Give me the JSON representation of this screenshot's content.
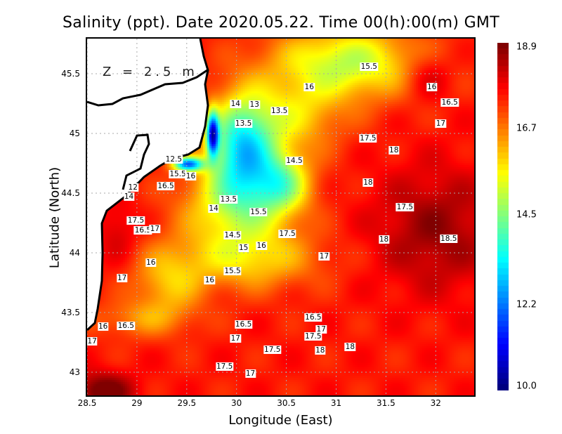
{
  "title": "Salinity (ppt). Date 2020.05.22. Time 00(h):00(m) GMT",
  "depth_label": "Z = 2.5 m",
  "chart_data": {
    "type": "heatmap",
    "title": "Salinity (ppt). Date 2020.05.22. Time 00(h):00(m) GMT",
    "xlabel": "Longitude (East)",
    "ylabel": "Latitude (North)",
    "xlim": [
      28.5,
      32.39
    ],
    "ylim": [
      42.81,
      45.8
    ],
    "xticks": [
      "28.5",
      "29",
      "29.5",
      "30",
      "30.5",
      "31",
      "31.5",
      "32"
    ],
    "yticks": [
      "43",
      "43.5",
      "44",
      "44.5",
      "45",
      "45.5"
    ],
    "colorbar": {
      "min": 10.0,
      "max": 18.9,
      "ticks": [
        "10.0",
        "12.2",
        "14.5",
        "16.7",
        "18.9"
      ],
      "colormap": "jet"
    },
    "grid": true,
    "contour_labels": [
      {
        "v": "15.5",
        "lon": 31.33,
        "lat": 45.56
      },
      {
        "v": "16",
        "lon": 30.73,
        "lat": 45.39
      },
      {
        "v": "16",
        "lon": 31.96,
        "lat": 45.39
      },
      {
        "v": "16.5",
        "lon": 32.14,
        "lat": 45.26
      },
      {
        "v": "17",
        "lon": 32.05,
        "lat": 45.08
      },
      {
        "v": "14",
        "lon": 29.99,
        "lat": 45.25
      },
      {
        "v": "13",
        "lon": 30.18,
        "lat": 45.24
      },
      {
        "v": "13.5",
        "lon": 30.43,
        "lat": 45.19
      },
      {
        "v": "13.5",
        "lon": 30.07,
        "lat": 45.08
      },
      {
        "v": "17.5",
        "lon": 31.32,
        "lat": 44.96
      },
      {
        "v": "18",
        "lon": 31.58,
        "lat": 44.86
      },
      {
        "v": "14.5",
        "lon": 30.58,
        "lat": 44.77
      },
      {
        "v": "12.5",
        "lon": 29.37,
        "lat": 44.78
      },
      {
        "v": "15.5",
        "lon": 29.41,
        "lat": 44.66
      },
      {
        "v": "16",
        "lon": 29.54,
        "lat": 44.64
      },
      {
        "v": "16.5",
        "lon": 29.29,
        "lat": 44.56
      },
      {
        "v": "18",
        "lon": 31.32,
        "lat": 44.59
      },
      {
        "v": "12",
        "lon": 28.96,
        "lat": 44.55
      },
      {
        "v": "13.5",
        "lon": 29.92,
        "lat": 44.45
      },
      {
        "v": "14",
        "lon": 28.92,
        "lat": 44.47
      },
      {
        "v": "17.5",
        "lon": 31.69,
        "lat": 44.38
      },
      {
        "v": "14",
        "lon": 29.77,
        "lat": 44.37
      },
      {
        "v": "15.5",
        "lon": 30.22,
        "lat": 44.34
      },
      {
        "v": "17.5",
        "lon": 28.99,
        "lat": 44.27
      },
      {
        "v": "16.5",
        "lon": 29.06,
        "lat": 44.19
      },
      {
        "v": "17",
        "lon": 29.18,
        "lat": 44.2
      },
      {
        "v": "17.5",
        "lon": 30.51,
        "lat": 44.16
      },
      {
        "v": "14.5",
        "lon": 29.96,
        "lat": 44.15
      },
      {
        "v": "18",
        "lon": 31.48,
        "lat": 44.11
      },
      {
        "v": "18.5",
        "lon": 32.13,
        "lat": 44.12
      },
      {
        "v": "16",
        "lon": 30.25,
        "lat": 44.06
      },
      {
        "v": "15",
        "lon": 30.07,
        "lat": 44.04
      },
      {
        "v": "17",
        "lon": 30.88,
        "lat": 43.97
      },
      {
        "v": "16",
        "lon": 29.14,
        "lat": 43.92
      },
      {
        "v": "15.5",
        "lon": 29.96,
        "lat": 43.85
      },
      {
        "v": "16",
        "lon": 29.73,
        "lat": 43.77
      },
      {
        "v": "17",
        "lon": 28.85,
        "lat": 43.79
      },
      {
        "v": "16.5",
        "lon": 30.77,
        "lat": 43.46
      },
      {
        "v": "16.5",
        "lon": 30.07,
        "lat": 43.4
      },
      {
        "v": "17",
        "lon": 30.85,
        "lat": 43.36
      },
      {
        "v": "17.5",
        "lon": 30.77,
        "lat": 43.3
      },
      {
        "v": "16",
        "lon": 28.66,
        "lat": 43.38
      },
      {
        "v": "16.5",
        "lon": 28.89,
        "lat": 43.39
      },
      {
        "v": "17",
        "lon": 29.99,
        "lat": 43.28
      },
      {
        "v": "17.5",
        "lon": 30.36,
        "lat": 43.19
      },
      {
        "v": "18",
        "lon": 30.84,
        "lat": 43.18
      },
      {
        "v": "18",
        "lon": 31.14,
        "lat": 43.21
      },
      {
        "v": "17",
        "lon": 28.55,
        "lat": 43.26
      },
      {
        "v": "17.5",
        "lon": 29.88,
        "lat": 43.05
      },
      {
        "v": "17",
        "lon": 30.14,
        "lat": 42.99
      }
    ]
  }
}
